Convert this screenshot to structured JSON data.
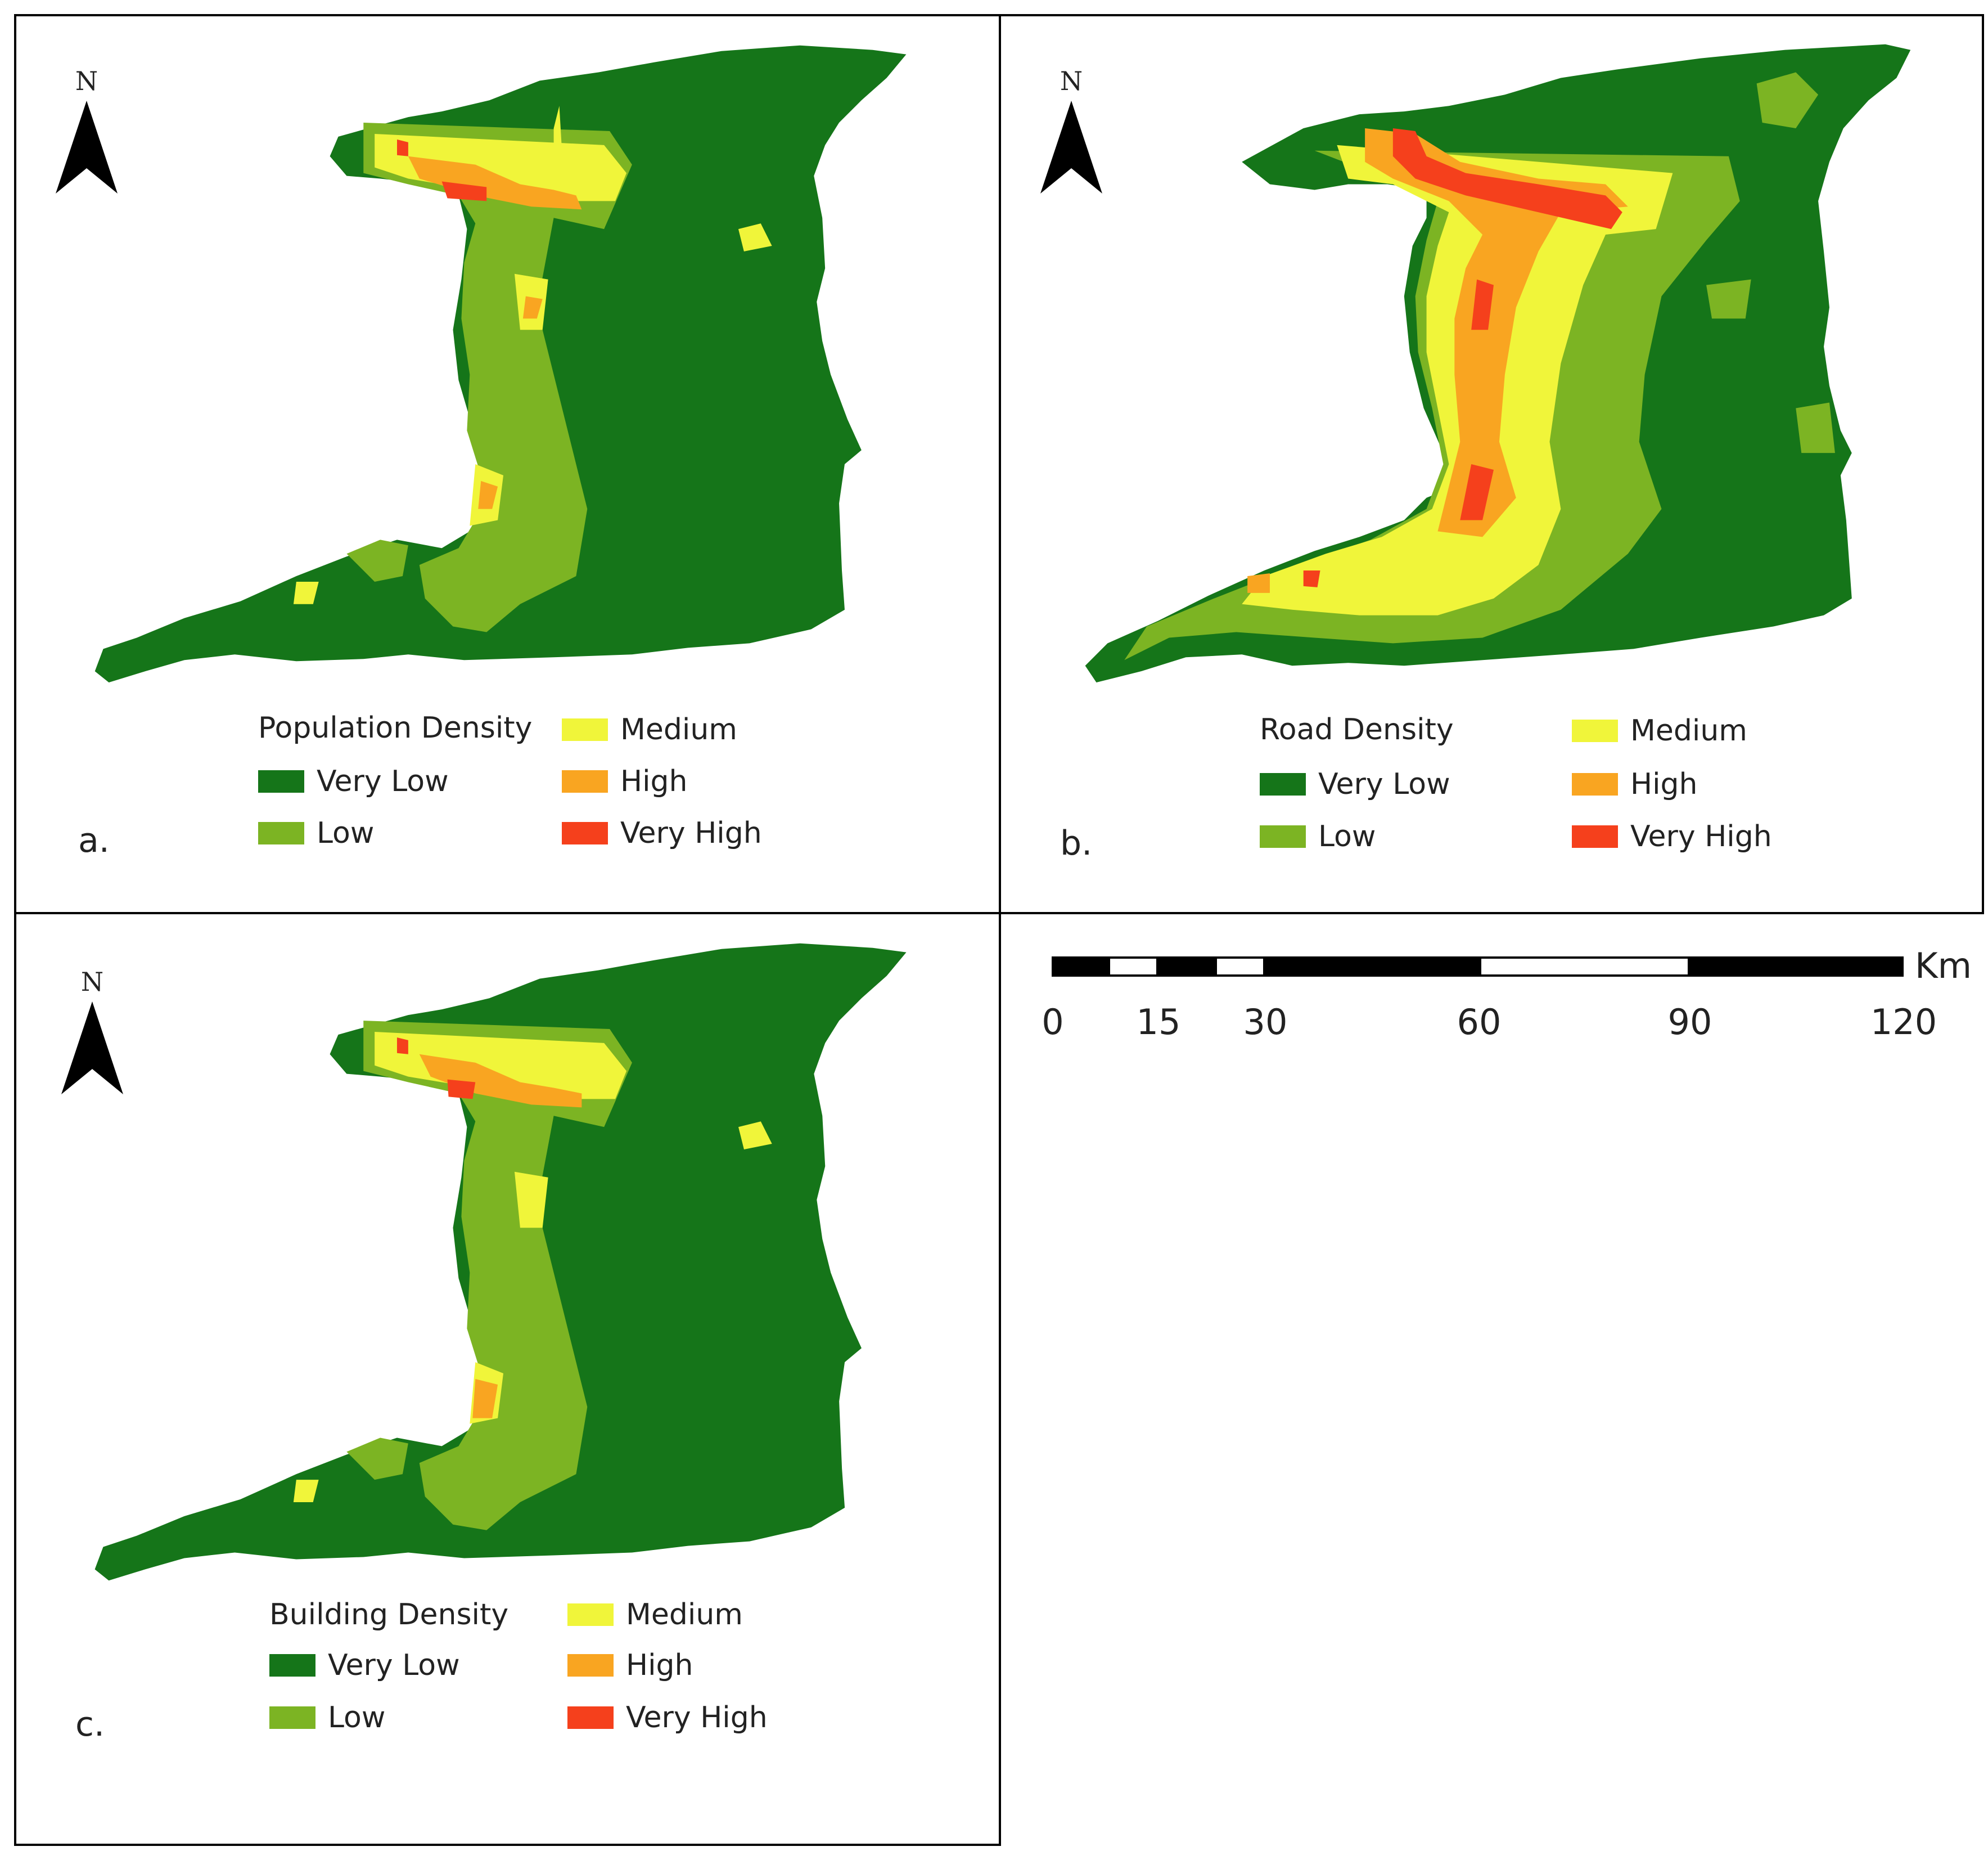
{
  "colors": {
    "very_low": "#157519",
    "low": "#7cb423",
    "medium": "#f0f53a",
    "high": "#f9a521",
    "very_high": "#f5401c",
    "border": "#000000"
  },
  "north_arrow": {
    "letter": "N",
    "icon": "north-arrow-icon"
  },
  "panels": {
    "a": {
      "label": "a.",
      "legend_title": "Population Density",
      "classes": [
        "Very Low",
        "Low",
        "Medium",
        "High",
        "Very High"
      ]
    },
    "b": {
      "label": "b.",
      "legend_title": "Road Density",
      "classes": [
        "Very Low",
        "Low",
        "Medium",
        "High",
        "Very High"
      ]
    },
    "c": {
      "label": "c.",
      "legend_title": "Building Density",
      "classes": [
        "Very Low",
        "Low",
        "Medium",
        "High",
        "Very High"
      ]
    }
  },
  "scale_bar": {
    "unit": "Km",
    "ticks": [
      "0",
      "15",
      "30",
      "60",
      "90",
      "120"
    ]
  }
}
